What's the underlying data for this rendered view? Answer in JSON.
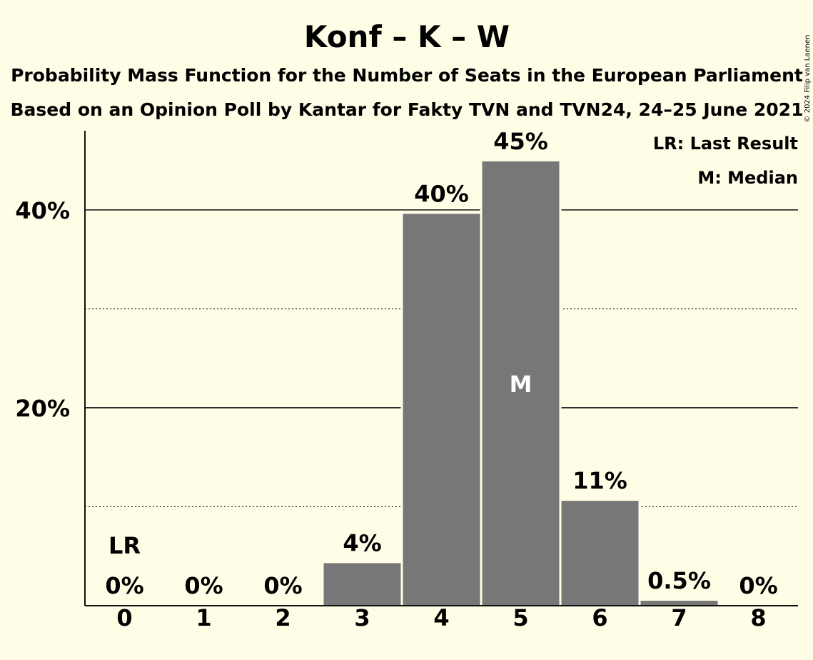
{
  "title": "Konf – K – W",
  "subtitle1": "Probability Mass Function for the Number of Seats in the European Parliament",
  "subtitle2": "Based on an Opinion Poll by Kantar for Fakty TVN and TVN24, 24–25 June 2021",
  "copyright": "© 2024 Filip van Laenen",
  "legend": {
    "last_result": "LR: Last Result",
    "median": "M: Median"
  },
  "chart_data": {
    "type": "bar",
    "categories": [
      "0",
      "1",
      "2",
      "3",
      "4",
      "5",
      "6",
      "7",
      "8"
    ],
    "values": [
      0,
      0,
      0,
      4.3,
      39.6,
      44.9,
      10.6,
      0.5,
      0
    ],
    "value_labels": [
      "0%",
      "0%",
      "0%",
      "4%",
      "40%",
      "45%",
      "11%",
      "0.5%",
      "0%"
    ],
    "ylim": [
      0,
      48
    ],
    "y_ticks": [
      {
        "value": 20,
        "label": "20%"
      },
      {
        "value": 40,
        "label": "40%"
      }
    ],
    "minor_gridlines": [
      10,
      30
    ],
    "last_result": {
      "category": "0",
      "marker": "LR"
    },
    "median": {
      "category": "5",
      "marker": "M"
    },
    "bar_color": "#777777",
    "background": "#fffde6",
    "grid": true,
    "legend_position": "top-right"
  }
}
